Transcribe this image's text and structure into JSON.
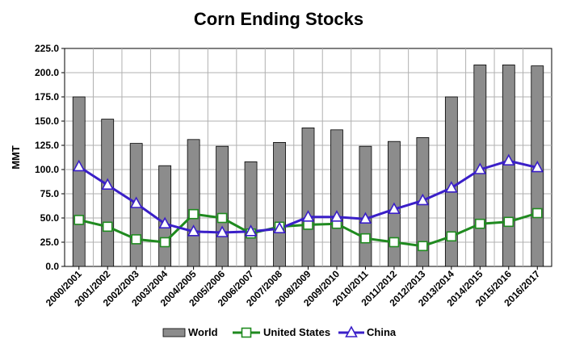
{
  "chart_data": {
    "type": "bar",
    "title": "Corn Ending Stocks",
    "xlabel": "",
    "ylabel": "MMT",
    "ylim": [
      0,
      225
    ],
    "yticks": [
      "0.0",
      "25.0",
      "50.0",
      "75.0",
      "100.0",
      "125.0",
      "150.0",
      "175.0",
      "200.0",
      "225.0"
    ],
    "grid": true,
    "legend_position": "bottom",
    "categories": [
      "2000/2001",
      "2001/2002",
      "2002/2003",
      "2003/2004",
      "2004/2005",
      "2005/2006",
      "2006/2007",
      "2007/2008",
      "2008/2009",
      "2009/2010",
      "2010/2011",
      "2011/2012",
      "2012/2013",
      "2013/2014",
      "2014/2015",
      "2015/2016",
      "2016/2017"
    ],
    "series": [
      {
        "name": "World",
        "type": "bar",
        "color": "#8c8c8c",
        "values": [
          175,
          152,
          127,
          104,
          131,
          124,
          108,
          128,
          143,
          141,
          124,
          129,
          133,
          175,
          208,
          208,
          207
        ]
      },
      {
        "name": "United States",
        "type": "line",
        "marker": "square",
        "color": "#1f8a1f",
        "values": [
          48,
          41,
          28,
          25,
          54,
          50,
          34,
          41,
          43,
          44,
          29,
          25,
          21,
          31,
          44,
          46,
          55
        ]
      },
      {
        "name": "China",
        "type": "line",
        "marker": "triangle",
        "color": "#3a1fc8",
        "values": [
          103,
          84,
          65,
          44,
          36,
          35,
          36,
          39,
          51,
          51,
          49,
          59,
          68,
          81,
          100,
          109,
          102
        ]
      }
    ]
  }
}
